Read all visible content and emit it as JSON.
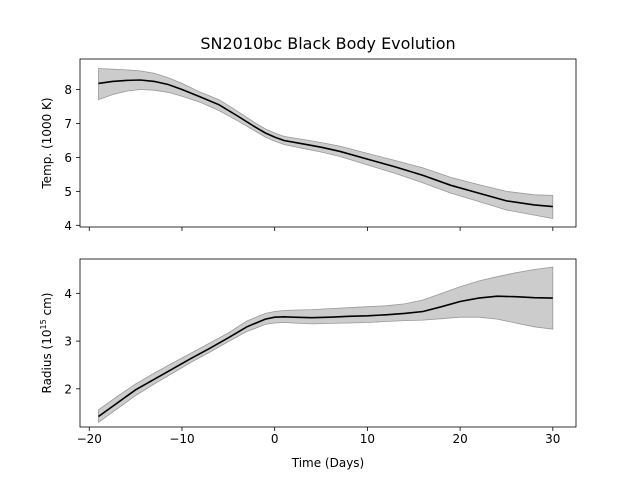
{
  "colors": {
    "background": "#ffffff",
    "axes": "#000000",
    "line": "#000000",
    "band": "#cccccc",
    "band_edge": "#999999"
  },
  "chart_data": [
    {
      "type": "line",
      "title": "SN2010bc Black Body Evolution",
      "xlabel": "",
      "ylabel": "Temp. (1000 K)",
      "xlim": [
        -21,
        32.5
      ],
      "ylim": [
        3.95,
        8.9
      ],
      "xticks": [
        -20,
        -10,
        0,
        10,
        20,
        30
      ],
      "xticklabels_visible": false,
      "yticks": [
        4,
        5,
        6,
        7,
        8
      ],
      "yticklabels": [
        "4",
        "5",
        "6",
        "7",
        "8"
      ],
      "grid": false,
      "legend": "none",
      "series": [
        {
          "x": [
            -19,
            -17.5,
            -16,
            -14.5,
            -13,
            -11.5,
            -10,
            -8,
            -6,
            -4,
            -2,
            -1,
            0,
            1,
            3,
            5,
            7,
            10,
            13,
            16,
            19,
            22,
            25,
            28,
            30
          ],
          "y": [
            8.18,
            8.24,
            8.27,
            8.28,
            8.24,
            8.15,
            8.0,
            7.78,
            7.55,
            7.22,
            6.88,
            6.72,
            6.6,
            6.5,
            6.4,
            6.3,
            6.18,
            5.95,
            5.72,
            5.47,
            5.18,
            4.95,
            4.72,
            4.6,
            4.55
          ],
          "band_low": [
            7.7,
            7.85,
            7.95,
            8.0,
            7.98,
            7.92,
            7.8,
            7.62,
            7.38,
            7.08,
            6.76,
            6.6,
            6.48,
            6.38,
            6.27,
            6.16,
            6.03,
            5.78,
            5.53,
            5.25,
            4.95,
            4.7,
            4.45,
            4.3,
            4.2
          ],
          "band_high": [
            8.62,
            8.6,
            8.58,
            8.55,
            8.48,
            8.35,
            8.18,
            7.92,
            7.7,
            7.36,
            7.0,
            6.84,
            6.72,
            6.62,
            6.53,
            6.44,
            6.33,
            6.12,
            5.91,
            5.69,
            5.41,
            5.2,
            5.0,
            4.9,
            4.88
          ]
        }
      ]
    },
    {
      "type": "line",
      "xlabel": "Time (Days)",
      "ylabel": "Radius (10",
      "ylabel_superscript": "15",
      "ylabel_suffix": " cm)",
      "xlim": [
        -21,
        32.5
      ],
      "ylim": [
        1.2,
        4.72
      ],
      "xticks": [
        -20,
        -10,
        0,
        10,
        20,
        30
      ],
      "xticklabels": [
        "−20",
        "−10",
        "0",
        "10",
        "20",
        "30"
      ],
      "yticks": [
        2,
        3,
        4
      ],
      "yticklabels": [
        "2",
        "3",
        "4"
      ],
      "grid": false,
      "legend": "none",
      "series": [
        {
          "x": [
            -19,
            -17,
            -15,
            -13,
            -11,
            -9,
            -7,
            -5,
            -3,
            -1,
            0,
            1,
            2,
            4,
            6,
            8,
            10,
            12,
            14,
            16,
            18,
            20,
            22,
            24,
            26,
            28,
            30
          ],
          "y": [
            1.42,
            1.7,
            1.98,
            2.2,
            2.42,
            2.64,
            2.85,
            3.07,
            3.3,
            3.46,
            3.5,
            3.51,
            3.5,
            3.49,
            3.5,
            3.52,
            3.53,
            3.55,
            3.58,
            3.62,
            3.72,
            3.83,
            3.9,
            3.94,
            3.93,
            3.91,
            3.9
          ],
          "band_low": [
            1.3,
            1.58,
            1.86,
            2.1,
            2.33,
            2.56,
            2.77,
            2.99,
            3.2,
            3.35,
            3.38,
            3.39,
            3.38,
            3.36,
            3.37,
            3.38,
            3.39,
            3.41,
            3.43,
            3.44,
            3.47,
            3.5,
            3.5,
            3.46,
            3.38,
            3.3,
            3.25
          ],
          "band_high": [
            1.56,
            1.84,
            2.1,
            2.33,
            2.54,
            2.75,
            2.96,
            3.17,
            3.42,
            3.58,
            3.62,
            3.64,
            3.65,
            3.66,
            3.68,
            3.7,
            3.72,
            3.74,
            3.78,
            3.86,
            4.0,
            4.14,
            4.26,
            4.35,
            4.43,
            4.5,
            4.55
          ]
        }
      ]
    }
  ]
}
